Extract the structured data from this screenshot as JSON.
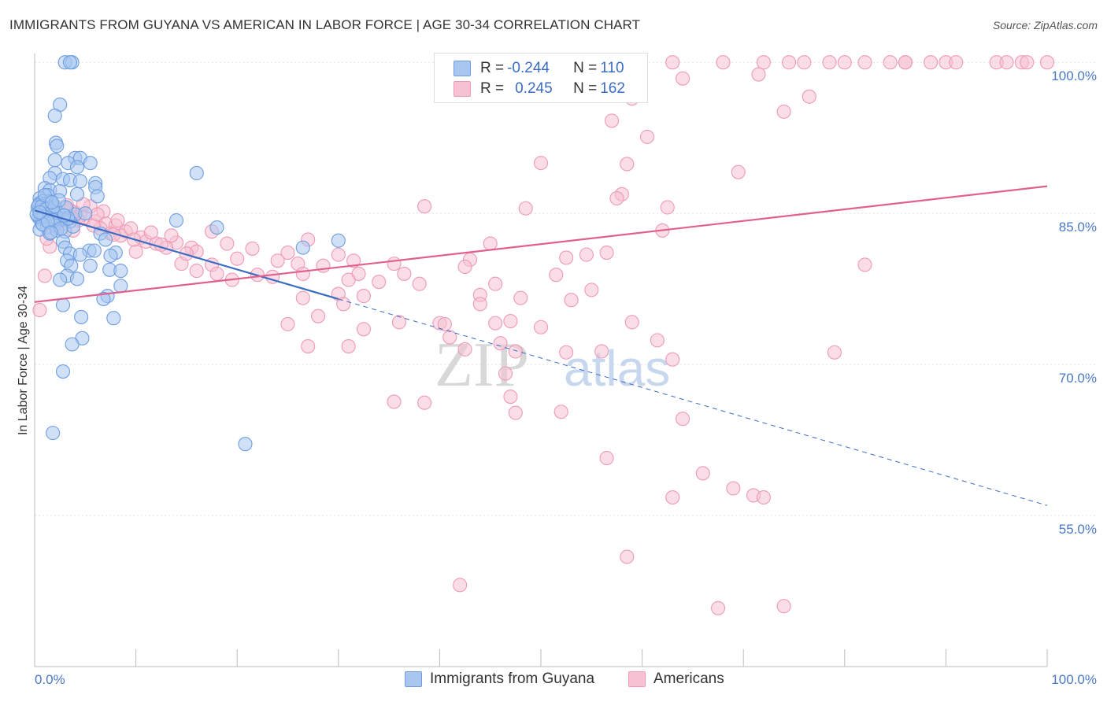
{
  "header": {
    "title": "IMMIGRANTS FROM GUYANA VS AMERICAN IN LABOR FORCE | AGE 30-34 CORRELATION CHART",
    "source": "Source: ZipAtlas.com"
  },
  "legend_top": {
    "rows": [
      {
        "r_label": "R = ",
        "r_value": "-0.244",
        "n_label": "N = ",
        "n_value": "110"
      },
      {
        "r_label": "R = ",
        "r_value": "0.245",
        "n_label": "N = ",
        "n_value": "162"
      }
    ]
  },
  "legend_bottom": {
    "items": [
      "Immigrants from Guyana",
      "Americans"
    ]
  },
  "watermark": {
    "zip": "ZIP",
    "atlas": "atlas"
  },
  "colors": {
    "blue_fill": "#a8c6f0",
    "blue_stroke": "#6f9ee0",
    "blue_line": "#3a6cc4",
    "pink_fill": "#f6c1d2",
    "pink_stroke": "#ee9ab6",
    "pink_line": "#e0608e",
    "tick_text": "#4a78c4",
    "grid": "#e2e2e2"
  },
  "chart_data": {
    "type": "scatter",
    "title": "IMMIGRANTS FROM GUYANA VS AMERICAN IN LABOR FORCE | AGE 30-34 CORRELATION CHART",
    "xlabel": "",
    "ylabel": "In Labor Force | Age 30-34",
    "x_tick_labels": [
      "0.0%",
      "100.0%"
    ],
    "y_tick_labels": [
      "100.0%",
      "85.0%",
      "70.0%",
      "55.0%"
    ],
    "y_ticks": [
      100,
      85,
      70,
      55
    ],
    "xlim": [
      0,
      100
    ],
    "ylim": [
      40,
      101.5
    ],
    "grid": true,
    "series": [
      {
        "name": "Immigrants from Guyana",
        "color": "#6f9ee0",
        "trend": {
          "x0": 0,
          "y0": 85.3,
          "x1": 30,
          "y1": 76.5,
          "dashed_to_x": 100,
          "dashed_to_y": 56.0
        },
        "points": [
          [
            3.0,
            100
          ],
          [
            3.7,
            100
          ],
          [
            3.5,
            100
          ],
          [
            2.5,
            95.8
          ],
          [
            2.0,
            94.7
          ],
          [
            2.1,
            92.0
          ],
          [
            2.2,
            91.7
          ],
          [
            4.0,
            90.5
          ],
          [
            4.5,
            90.5
          ],
          [
            2.0,
            90.3
          ],
          [
            3.3,
            90.0
          ],
          [
            5.5,
            90.0
          ],
          [
            4.2,
            89.6
          ],
          [
            2.0,
            89.0
          ],
          [
            16.0,
            89.0
          ],
          [
            1.5,
            88.5
          ],
          [
            2.8,
            88.4
          ],
          [
            3.5,
            88.3
          ],
          [
            4.5,
            88.2
          ],
          [
            6.0,
            88.0
          ],
          [
            6.0,
            87.6
          ],
          [
            1.0,
            87.5
          ],
          [
            1.5,
            87.3
          ],
          [
            2.5,
            87.2
          ],
          [
            1.3,
            86.8
          ],
          [
            0.5,
            86.5
          ],
          [
            4.2,
            86.9
          ],
          [
            6.2,
            86.7
          ],
          [
            0.8,
            86.2
          ],
          [
            1.5,
            86.2
          ],
          [
            0.5,
            86.0
          ],
          [
            1.0,
            85.9
          ],
          [
            0.3,
            85.6
          ],
          [
            2.0,
            85.5
          ],
          [
            0.5,
            85.3
          ],
          [
            1.0,
            85.2
          ],
          [
            1.2,
            85.0
          ],
          [
            0.6,
            84.9
          ],
          [
            1.6,
            84.8
          ],
          [
            2.5,
            84.8
          ],
          [
            3.2,
            84.7
          ],
          [
            4.0,
            84.9
          ],
          [
            5.0,
            85.0
          ],
          [
            0.4,
            84.6
          ],
          [
            0.6,
            84.5
          ],
          [
            1.4,
            84.6
          ],
          [
            2.8,
            84.4
          ],
          [
            3.5,
            84.2
          ],
          [
            1.8,
            84.1
          ],
          [
            0.7,
            84.0
          ],
          [
            2.0,
            83.8
          ],
          [
            1.2,
            83.6
          ],
          [
            0.5,
            83.4
          ],
          [
            3.0,
            83.2
          ],
          [
            1.5,
            83.0
          ],
          [
            2.2,
            83.3
          ],
          [
            3.8,
            83.7
          ],
          [
            14.0,
            84.3
          ],
          [
            18.0,
            83.6
          ],
          [
            6.5,
            83.0
          ],
          [
            2.8,
            82.2
          ],
          [
            7.0,
            82.4
          ],
          [
            3.0,
            81.6
          ],
          [
            5.4,
            81.3
          ],
          [
            5.9,
            81.3
          ],
          [
            3.5,
            81.0
          ],
          [
            8.0,
            81.1
          ],
          [
            4.5,
            80.9
          ],
          [
            7.5,
            80.8
          ],
          [
            30.0,
            82.3
          ],
          [
            26.5,
            81.6
          ],
          [
            3.2,
            80.3
          ],
          [
            3.6,
            79.8
          ],
          [
            5.5,
            79.8
          ],
          [
            7.4,
            79.4
          ],
          [
            8.5,
            79.3
          ],
          [
            3.2,
            78.8
          ],
          [
            4.2,
            78.5
          ],
          [
            2.5,
            78.4
          ],
          [
            8.5,
            77.8
          ],
          [
            7.2,
            76.8
          ],
          [
            6.8,
            76.5
          ],
          [
            2.8,
            75.9
          ],
          [
            4.6,
            74.7
          ],
          [
            7.8,
            74.6
          ],
          [
            4.7,
            72.6
          ],
          [
            3.7,
            72.0
          ],
          [
            2.8,
            69.3
          ],
          [
            1.8,
            63.2
          ],
          [
            20.8,
            62.1
          ],
          [
            0.4,
            85.8
          ],
          [
            0.7,
            85.7
          ],
          [
            1.1,
            85.4
          ],
          [
            1.7,
            85.2
          ],
          [
            2.3,
            85.1
          ],
          [
            0.9,
            84.7
          ],
          [
            1.9,
            84.3
          ],
          [
            0.8,
            83.9
          ],
          [
            2.6,
            83.5
          ],
          [
            1.3,
            84.2
          ],
          [
            2.0,
            85.7
          ],
          [
            0.2,
            84.9
          ],
          [
            1.0,
            86.8
          ],
          [
            3.1,
            85.6
          ],
          [
            1.6,
            83.1
          ],
          [
            2.4,
            86.3
          ],
          [
            0.5,
            85.1
          ],
          [
            3.3,
            84.5
          ],
          [
            1.7,
            86.1
          ],
          [
            2.9,
            84.8
          ]
        ]
      },
      {
        "name": "Americans",
        "color": "#ee9ab6",
        "trend": {
          "x0": 0,
          "y0": 76.2,
          "x1": 100,
          "y1": 87.7
        },
        "points": [
          [
            54.0,
            100
          ],
          [
            63.0,
            100
          ],
          [
            68.0,
            100
          ],
          [
            72.0,
            100
          ],
          [
            74.5,
            100
          ],
          [
            76.0,
            100
          ],
          [
            78.5,
            100
          ],
          [
            80.0,
            100
          ],
          [
            82.0,
            100
          ],
          [
            84.5,
            100
          ],
          [
            86.0,
            100
          ],
          [
            88.5,
            100
          ],
          [
            90.0,
            100
          ],
          [
            91.0,
            100
          ],
          [
            95.0,
            100
          ],
          [
            96.0,
            100
          ],
          [
            97.5,
            100
          ],
          [
            98.0,
            100
          ],
          [
            100.0,
            100
          ],
          [
            86.0,
            100
          ],
          [
            71.5,
            98.8
          ],
          [
            64.0,
            98.4
          ],
          [
            76.5,
            96.6
          ],
          [
            59.0,
            96.4
          ],
          [
            74.0,
            95.1
          ],
          [
            57.0,
            94.2
          ],
          [
            60.5,
            92.6
          ],
          [
            50.0,
            90.0
          ],
          [
            58.5,
            89.9
          ],
          [
            69.5,
            89.1
          ],
          [
            58.0,
            86.9
          ],
          [
            57.5,
            86.5
          ],
          [
            38.5,
            85.7
          ],
          [
            48.5,
            85.5
          ],
          [
            62.5,
            85.6
          ],
          [
            3.0,
            85.5
          ],
          [
            3.5,
            85.3
          ],
          [
            4.0,
            85.1
          ],
          [
            4.5,
            84.8
          ],
          [
            1.5,
            84.8
          ],
          [
            5.0,
            84.6
          ],
          [
            2.5,
            84.4
          ],
          [
            6.0,
            84.2
          ],
          [
            7.0,
            84.0
          ],
          [
            8.0,
            83.8
          ],
          [
            6.5,
            83.5
          ],
          [
            3.8,
            83.3
          ],
          [
            9.0,
            83.2
          ],
          [
            17.5,
            83.2
          ],
          [
            7.5,
            83.0
          ],
          [
            8.5,
            82.8
          ],
          [
            10.5,
            82.6
          ],
          [
            62.0,
            83.3
          ],
          [
            27.0,
            82.4
          ],
          [
            11.0,
            82.2
          ],
          [
            12.0,
            82.0
          ],
          [
            14.0,
            82.1
          ],
          [
            19.0,
            82.0
          ],
          [
            45.0,
            82.0
          ],
          [
            1.5,
            81.7
          ],
          [
            13.0,
            81.6
          ],
          [
            15.5,
            81.6
          ],
          [
            21.5,
            81.5
          ],
          [
            10.0,
            81.2
          ],
          [
            16.0,
            81.2
          ],
          [
            25.0,
            81.1
          ],
          [
            30.0,
            80.9
          ],
          [
            54.5,
            80.9
          ],
          [
            56.5,
            81.1
          ],
          [
            52.5,
            80.6
          ],
          [
            20.0,
            80.5
          ],
          [
            24.0,
            80.3
          ],
          [
            31.5,
            80.3
          ],
          [
            43.0,
            80.4
          ],
          [
            14.5,
            80.0
          ],
          [
            17.5,
            79.9
          ],
          [
            26.0,
            80.0
          ],
          [
            28.5,
            79.8
          ],
          [
            35.5,
            80.0
          ],
          [
            42.5,
            79.7
          ],
          [
            82.0,
            79.9
          ],
          [
            16.0,
            79.3
          ],
          [
            18.0,
            79.0
          ],
          [
            22.0,
            78.9
          ],
          [
            26.5,
            79.0
          ],
          [
            32.0,
            79.0
          ],
          [
            36.5,
            79.0
          ],
          [
            51.5,
            78.9
          ],
          [
            1.0,
            78.8
          ],
          [
            19.5,
            78.4
          ],
          [
            23.5,
            78.7
          ],
          [
            31.0,
            78.4
          ],
          [
            34.0,
            78.2
          ],
          [
            38.0,
            78.0
          ],
          [
            45.5,
            78.0
          ],
          [
            55.0,
            77.4
          ],
          [
            30.0,
            77.0
          ],
          [
            32.5,
            76.8
          ],
          [
            44.0,
            76.9
          ],
          [
            48.0,
            76.6
          ],
          [
            53.0,
            76.4
          ],
          [
            26.5,
            76.6
          ],
          [
            44.0,
            76.0
          ],
          [
            30.5,
            76.0
          ],
          [
            0.5,
            75.4
          ],
          [
            28.0,
            74.8
          ],
          [
            36.0,
            74.2
          ],
          [
            47.0,
            74.3
          ],
          [
            40.0,
            74.1
          ],
          [
            45.5,
            74.1
          ],
          [
            40.5,
            74.0
          ],
          [
            59.0,
            74.2
          ],
          [
            25.0,
            74.0
          ],
          [
            50.0,
            73.7
          ],
          [
            32.5,
            73.5
          ],
          [
            41.0,
            72.7
          ],
          [
            61.5,
            72.4
          ],
          [
            46.0,
            72.1
          ],
          [
            31.0,
            71.8
          ],
          [
            27.0,
            71.8
          ],
          [
            42.5,
            71.5
          ],
          [
            47.5,
            71.3
          ],
          [
            56.0,
            71.3
          ],
          [
            79.0,
            71.2
          ],
          [
            52.5,
            71.2
          ],
          [
            63.0,
            70.5
          ],
          [
            46.5,
            69.1
          ],
          [
            35.5,
            66.3
          ],
          [
            38.5,
            66.2
          ],
          [
            47.0,
            66.8
          ],
          [
            52.0,
            65.3
          ],
          [
            47.5,
            65.2
          ],
          [
            64.0,
            64.6
          ],
          [
            56.5,
            60.7
          ],
          [
            66.0,
            59.2
          ],
          [
            69.0,
            57.7
          ],
          [
            71.0,
            57.0
          ],
          [
            72.0,
            56.8
          ],
          [
            63.0,
            56.8
          ],
          [
            58.5,
            50.9
          ],
          [
            42.0,
            48.1
          ],
          [
            67.5,
            45.8
          ],
          [
            74.0,
            46.0
          ],
          [
            2.0,
            85.0
          ],
          [
            5.5,
            85.7
          ],
          [
            3.2,
            85.8
          ],
          [
            4.3,
            84.3
          ],
          [
            2.8,
            84.0
          ],
          [
            6.8,
            85.2
          ],
          [
            8.2,
            84.3
          ],
          [
            9.5,
            83.5
          ],
          [
            11.5,
            83.1
          ],
          [
            4.8,
            85.9
          ],
          [
            1.2,
            82.5
          ],
          [
            3.6,
            84.6
          ],
          [
            5.8,
            83.8
          ],
          [
            7.8,
            82.9
          ],
          [
            13.5,
            82.8
          ],
          [
            12.5,
            81.9
          ],
          [
            2.2,
            83.6
          ],
          [
            6.2,
            84.9
          ],
          [
            9.8,
            82.4
          ],
          [
            15.0,
            81.0
          ]
        ]
      }
    ]
  }
}
